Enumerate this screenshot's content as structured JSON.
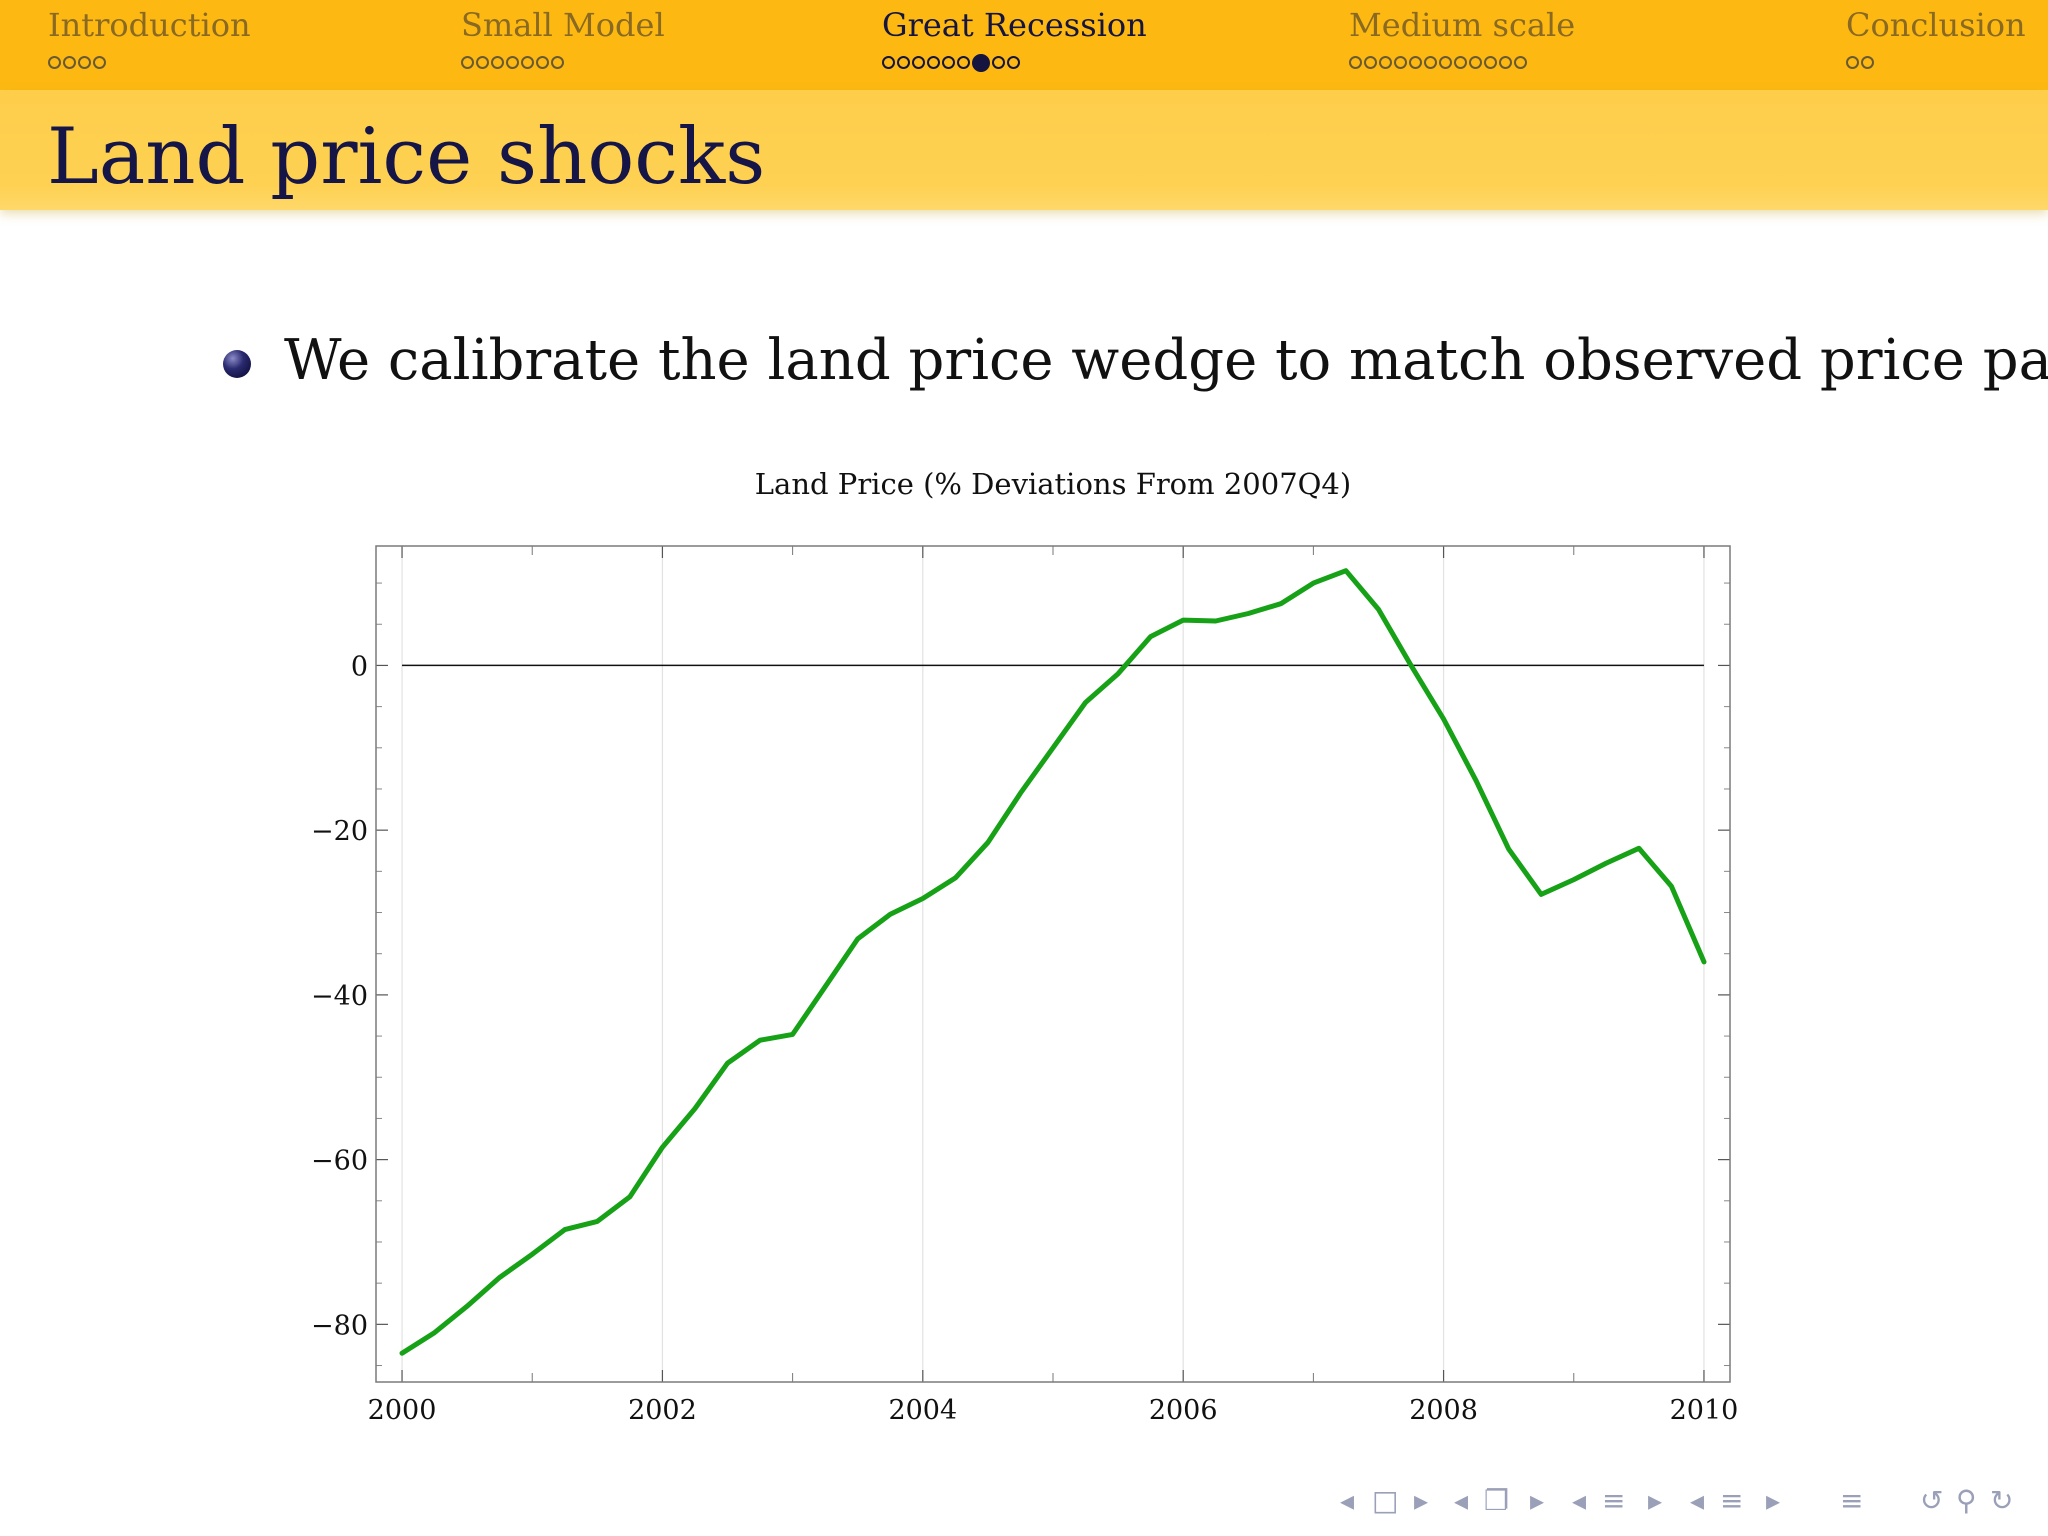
{
  "nav": {
    "sections": [
      {
        "label": "Introduction",
        "dots": 4,
        "filled": -1,
        "active": false
      },
      {
        "label": "Small Model",
        "dots": 7,
        "filled": -1,
        "active": false
      },
      {
        "label": "Great Recession",
        "dots": 9,
        "filled": 6,
        "active": true
      },
      {
        "label": "Medium scale",
        "dots": 12,
        "filled": -1,
        "active": false
      },
      {
        "label": "Conclusion",
        "dots": 2,
        "filled": -1,
        "active": false
      }
    ]
  },
  "slide": {
    "title": "Land price shocks",
    "bullet": "We calibrate the land price wedge to match observed price path,"
  },
  "colors": {
    "nav_bg": "#fdb912",
    "title_bg": "#fed153",
    "title_text": "#151547",
    "series": "#16a116"
  },
  "chart_data": {
    "type": "line",
    "title": "Land Price (% Deviations From 2007Q4)",
    "xlabel": "",
    "ylabel": "",
    "xlim": [
      1999.8,
      2010.2
    ],
    "ylim": [
      -87,
      14.5
    ],
    "xticks": [
      2000,
      2002,
      2004,
      2006,
      2008,
      2010
    ],
    "yticks": [
      0,
      -20,
      -40,
      -60,
      -80
    ],
    "x_tick_labels": [
      "2000",
      "2002",
      "2004",
      "2006",
      "2008",
      "2010"
    ],
    "y_tick_labels": [
      "0",
      "−20",
      "−40",
      "−60",
      "−80"
    ],
    "grid": "vertical",
    "reference_line": 0,
    "series": [
      {
        "x": [
          2000.0,
          2000.25,
          2000.5,
          2000.75,
          2001.0,
          2001.25,
          2001.5,
          2001.75,
          2002.0,
          2002.25,
          2002.5,
          2002.75,
          2003.0,
          2003.25,
          2003.5,
          2003.75,
          2004.0,
          2004.25,
          2004.5,
          2004.75,
          2005.0,
          2005.25,
          2005.5,
          2005.75,
          2006.0,
          2006.25,
          2006.5,
          2006.75,
          2007.0,
          2007.25,
          2007.5,
          2007.75,
          2008.0,
          2008.25,
          2008.5,
          2008.75,
          2009.0,
          2009.25,
          2009.5,
          2009.75,
          2010.0
        ],
        "values": [
          -83.5,
          -81.0,
          -77.8,
          -74.3,
          -71.5,
          -68.5,
          -67.5,
          -64.5,
          -58.5,
          -53.8,
          -48.3,
          -45.5,
          -44.8,
          -39.0,
          -33.2,
          -30.2,
          -28.3,
          -25.8,
          -21.5,
          -15.5,
          -10.0,
          -4.5,
          -1.0,
          3.5,
          5.5,
          5.4,
          6.3,
          7.5,
          10.0,
          11.5,
          6.8,
          0.0,
          -6.5,
          -14.0,
          -22.3,
          -27.8,
          -26.0,
          -24.0,
          -22.2,
          -26.8,
          -36.0
        ]
      }
    ]
  },
  "controls": {
    "icons": [
      "arrow-left-icon",
      "frame-icon",
      "arrow-right-icon",
      "arrow-left-icon",
      "subsection-icon",
      "arrow-right-icon",
      "arrow-left-icon",
      "section-icon",
      "arrow-right-icon",
      "arrow-left-icon",
      "section-icon",
      "arrow-right-icon",
      "toc-icon",
      "undo-icon",
      "search-icon",
      "redo-icon"
    ]
  }
}
